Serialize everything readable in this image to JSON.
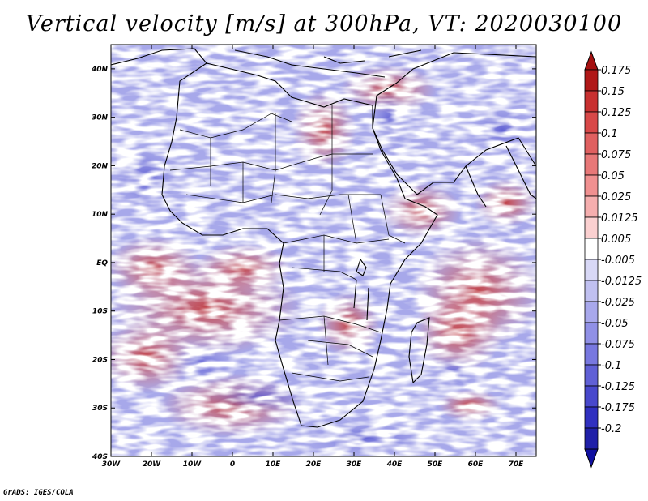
{
  "title": "Vertical velocity [m/s] at 300hPa, VT: 2020030100",
  "credit": "GrADS: IGES/COLA",
  "map": {
    "lat_labels": [
      "40N",
      "30N",
      "20N",
      "10N",
      "EQ",
      "10S",
      "20S",
      "30S",
      "40S"
    ],
    "lon_labels": [
      "30W",
      "20W",
      "10W",
      "0",
      "10E",
      "20E",
      "30E",
      "40E",
      "50E",
      "60E",
      "70E"
    ],
    "lat_range": [
      -40,
      45
    ],
    "lon_range": [
      -30,
      75
    ]
  },
  "colorbar": {
    "labels": [
      "0.175",
      "0.15",
      "0.125",
      "0.1",
      "0.075",
      "0.05",
      "0.025",
      "0.0125",
      "0.005",
      "-0.005",
      "-0.0125",
      "-0.025",
      "-0.05",
      "-0.075",
      "-0.1",
      "-0.125",
      "-0.175",
      "-0.2"
    ],
    "colors": [
      "#b01818",
      "#c83030",
      "#d84848",
      "#e06060",
      "#e87878",
      "#f09090",
      "#f5aeae",
      "#fbd0d0",
      "#ffffff",
      "#d8d8f6",
      "#c0c0f0",
      "#a8a8ec",
      "#9090e6",
      "#7878e0",
      "#6060d6",
      "#4848cc",
      "#3030c0",
      "#2020a8"
    ],
    "top_color": "#a51010",
    "bottom_color": "#1010a0"
  },
  "chart_data": {
    "type": "heatmap",
    "title": "Vertical velocity [m/s] at 300hPa, VT: 2020030100",
    "variable": "Vertical velocity",
    "units": "m/s",
    "level": "300hPa",
    "valid_time": "2020030100",
    "x_range_deg": [
      -30,
      75
    ],
    "y_range_deg": [
      -40,
      45
    ],
    "x_ticks": [
      "30W",
      "20W",
      "10W",
      "0",
      "10E",
      "20E",
      "30E",
      "40E",
      "50E",
      "60E",
      "70E"
    ],
    "y_ticks": [
      "40S",
      "30S",
      "20S",
      "10S",
      "EQ",
      "10N",
      "20N",
      "30N",
      "40N"
    ],
    "contour_levels": [
      -0.2,
      -0.175,
      -0.125,
      -0.1,
      -0.075,
      -0.05,
      -0.025,
      -0.0125,
      -0.005,
      0.005,
      0.0125,
      0.025,
      0.05,
      0.075,
      0.1,
      0.125,
      0.15,
      0.175
    ]
  }
}
